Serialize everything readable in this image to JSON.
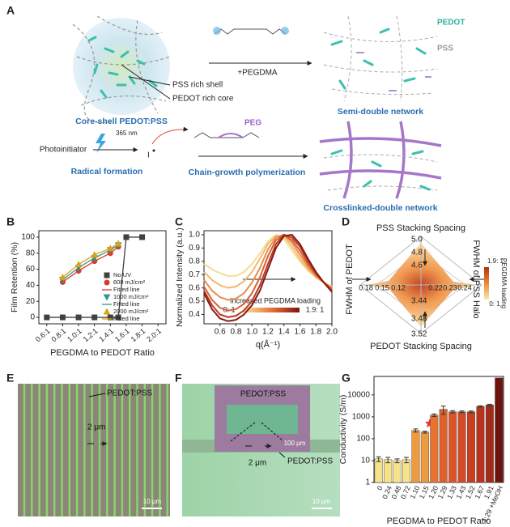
{
  "panel_labels": [
    "A",
    "B",
    "C",
    "D",
    "E",
    "F",
    "G"
  ],
  "panel_a": {
    "pedot": "PEDOT",
    "pss": "PSS",
    "pss_shell": "PSS rich shell",
    "pedot_core": "PEDOT rich core",
    "core_shell": "Core-shell PEDOT:PSS",
    "plus_pegdma": "+PEGDMA",
    "semi_double": "Semi-double network",
    "photoinitiator": "Photoinitiator",
    "wavelength": "365 nm",
    "radical": "Radical formation",
    "radical_symbol": "I",
    "chain_growth": "Chain-growth polymerization",
    "peg": "PEG",
    "crosslinked": "Crosslinked-double network"
  },
  "chart_data": [
    {
      "type": "line",
      "xlabel": "PEGDMA to PEDOT Ratio",
      "ylabel": "Film Retention (%)",
      "xlim": [
        0.5,
        2.1
      ],
      "ylim": [
        -8,
        108
      ],
      "xticks": [
        {
          "value": 0.6,
          "label": "0.6:1"
        },
        {
          "value": 0.8,
          "label": "0.8:1"
        },
        {
          "value": 1.0,
          "label": "1.0:1"
        },
        {
          "value": 1.2,
          "label": "1.2:1"
        },
        {
          "value": 1.4,
          "label": "1.4:1"
        },
        {
          "value": 1.6,
          "label": "1.6:1"
        },
        {
          "value": 1.8,
          "label": "1.8:1"
        },
        {
          "value": 2.0,
          "label": "2.0:1"
        }
      ],
      "yticks": [
        0,
        20,
        40,
        60,
        80,
        100
      ],
      "legend": "right",
      "series": [
        {
          "name": "No UV",
          "color": "#404040",
          "marker": "square",
          "x": [
            0.6,
            0.8,
            1.0,
            1.2,
            1.4,
            1.5,
            1.6,
            1.8
          ],
          "values": [
            0,
            0,
            0,
            0,
            0,
            0,
            100,
            100
          ]
        },
        {
          "name": "600 mJ/cm²",
          "fit_name": "Fitted line",
          "color": "#d83a2e",
          "marker": "circle",
          "x": [
            0.8,
            1.0,
            1.2,
            1.4,
            1.5
          ],
          "values": [
            44,
            58,
            70,
            80,
            88
          ]
        },
        {
          "name": "1000 mJ/cm²",
          "fit_name": "Fitted line",
          "color": "#2a9d8f",
          "marker": "triangle-down",
          "x": [
            0.8,
            1.0,
            1.2,
            1.4,
            1.5
          ],
          "values": [
            47,
            62,
            74,
            84,
            90
          ]
        },
        {
          "name": "2000 mJ/cm²",
          "fit_name": "Fitted line",
          "color": "#d9a21b",
          "marker": "triangle",
          "x": [
            0.8,
            1.0,
            1.2,
            1.4,
            1.5
          ],
          "values": [
            50,
            66,
            78,
            86,
            92
          ]
        }
      ]
    },
    {
      "type": "line",
      "xlabel": "q(Å⁻¹)",
      "ylabel": "Normalized Intensity (a.u.)",
      "xlim": [
        0.4,
        2.0
      ],
      "ylim": [
        0.33,
        1.03
      ],
      "xticks": [
        0.6,
        0.8,
        {
          "value": 1.0,
          "label": "1.0"
        },
        1.2,
        1.4,
        1.6,
        1.8,
        {
          "value": 2.0,
          "label": "2.0"
        }
      ],
      "yticks": [
        0.4,
        0.5,
        0.6,
        0.7,
        0.8,
        0.9,
        {
          "value": 1.0,
          "label": "1.0"
        }
      ],
      "annotation": "Increased PEGDMA loading",
      "colorbar_labels": [
        "0: 1",
        "1.9: 1"
      ],
      "x": [
        0.4,
        0.5,
        0.6,
        0.7,
        0.8,
        0.9,
        1.0,
        1.1,
        1.2,
        1.3,
        1.4,
        1.5,
        1.6,
        1.7,
        1.8,
        1.9,
        2.0
      ],
      "series": [
        {
          "color": "#f6dc95",
          "values": [
            0.78,
            0.74,
            0.71,
            0.69,
            0.69,
            0.72,
            0.78,
            0.86,
            0.95,
            1.0,
            0.97,
            0.88,
            0.8,
            0.73,
            0.68,
            0.64,
            0.61
          ]
        },
        {
          "color": "#f2b86c",
          "values": [
            0.72,
            0.66,
            0.62,
            0.6,
            0.61,
            0.65,
            0.72,
            0.82,
            0.93,
            0.99,
            0.99,
            0.91,
            0.82,
            0.74,
            0.68,
            0.64,
            0.6
          ]
        },
        {
          "color": "#e98c4b",
          "values": [
            0.66,
            0.58,
            0.53,
            0.51,
            0.52,
            0.56,
            0.64,
            0.75,
            0.89,
            0.98,
            1.0,
            0.94,
            0.85,
            0.76,
            0.69,
            0.64,
            0.6
          ]
        },
        {
          "color": "#d66034",
          "values": [
            0.61,
            0.51,
            0.45,
            0.43,
            0.44,
            0.48,
            0.56,
            0.68,
            0.84,
            0.96,
            1.0,
            0.96,
            0.88,
            0.78,
            0.7,
            0.64,
            0.59
          ]
        },
        {
          "color": "#b83b23",
          "values": [
            0.58,
            0.47,
            0.4,
            0.38,
            0.39,
            0.43,
            0.5,
            0.62,
            0.78,
            0.93,
            1.0,
            0.98,
            0.91,
            0.8,
            0.71,
            0.64,
            0.58
          ]
        },
        {
          "color": "#8a1a12",
          "values": [
            0.56,
            0.44,
            0.37,
            0.35,
            0.36,
            0.4,
            0.47,
            0.58,
            0.74,
            0.9,
            0.99,
            1.0,
            0.93,
            0.82,
            0.72,
            0.64,
            0.57
          ]
        }
      ]
    },
    {
      "type": "bar",
      "xlabel": "PEGDMA to PEDOT Ratio",
      "ylabel": "Conductivity (S/m)",
      "log_y": true,
      "ylim": [
        1,
        70000
      ],
      "yticks": [
        1,
        10,
        100,
        1000,
        10000
      ],
      "categories": [
        "0",
        "0.24",
        "0.48",
        "0.72",
        "1.10",
        "1.15",
        "1.20",
        "1.29",
        "1.33",
        "1.43",
        "1.52",
        "1.67",
        "1.91",
        "1.29 +MeOH"
      ],
      "values": [
        12,
        11,
        10,
        11,
        240,
        200,
        1200,
        2200,
        1700,
        1700,
        1700,
        3000,
        3500,
        60000
      ],
      "errors": [
        3,
        3,
        2,
        3,
        40,
        20,
        150,
        900,
        200,
        150,
        150,
        200,
        250,
        null
      ],
      "colors": [
        "#f7e48a",
        "#f7e48a",
        "#f7e48a",
        "#f7e48a",
        "#ef9a3c",
        "#ef9a3c",
        "#e8732e",
        "#e0612a",
        "#db5427",
        "#d44a24",
        "#c93e20",
        "#b8321c",
        "#a42a18",
        "#6e1410"
      ]
    }
  ],
  "panel_d": {
    "top_title": "PSS Stacking Spacing",
    "bottom_title": "PEDOT Stacking Spacing",
    "left_title": "FWHM of PEDOT",
    "right_title": "FWHM of PSS Halo",
    "top_ticks": [
      "5.0",
      "4.8",
      "4.6"
    ],
    "left_ticks": [
      "0.18",
      "0.15",
      "0.12"
    ],
    "right_ticks": [
      "0.22",
      "0.23",
      "0.24"
    ],
    "bottom_ticks": [
      "3.44",
      "3.48",
      "3.52"
    ],
    "colorbar_title": "PEGDMA loading",
    "colorbar_labels": [
      "1.9: 1",
      "0: 1"
    ]
  },
  "panel_e": {
    "label": "PEDOT:PSS",
    "gap": "2 μm",
    "scale": "10 μm"
  },
  "panel_f": {
    "inset_label": "PEDOT:PSS",
    "inset_scale": "100 μm",
    "gap": "2 μm",
    "label": "PEDOT:PSS",
    "scale": "10 μm"
  }
}
